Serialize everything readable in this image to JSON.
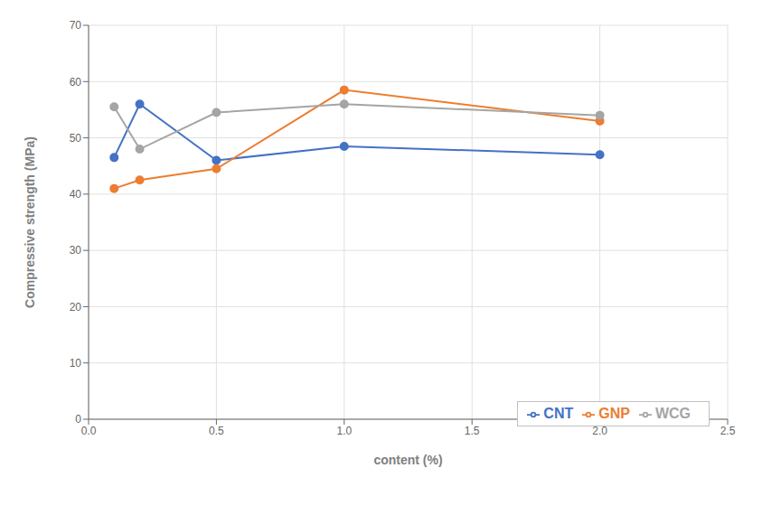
{
  "chart_data": {
    "type": "line",
    "xlabel": "content (%)",
    "ylabel": "Compressive strength (MPa)",
    "x": [
      0.1,
      0.2,
      0.5,
      1.0,
      2.0
    ],
    "series": [
      {
        "name": "CNT",
        "color": "#4472C4",
        "values": [
          46.5,
          56.0,
          46.0,
          48.5,
          47.0
        ],
        "marker": "circle"
      },
      {
        "name": "GNP",
        "color": "#ED7D31",
        "values": [
          41.0,
          42.5,
          44.5,
          58.5,
          53.0
        ],
        "marker": "circle"
      },
      {
        "name": "WCG",
        "color": "#A5A5A5",
        "values": [
          55.5,
          48.0,
          54.5,
          56.0,
          54.0
        ],
        "marker": "circle"
      }
    ],
    "xlim": [
      0.0,
      2.5
    ],
    "ylim": [
      0,
      70
    ],
    "xticks": [
      {
        "value": 0,
        "label": "0.0"
      },
      0.5,
      {
        "value": 1,
        "label": "1.0"
      },
      1.5,
      {
        "value": 2,
        "label": "2.0"
      },
      2.5
    ],
    "yticks": [
      0,
      10,
      20,
      30,
      40,
      50,
      60,
      70
    ],
    "grid": true,
    "legend": "lower right"
  }
}
